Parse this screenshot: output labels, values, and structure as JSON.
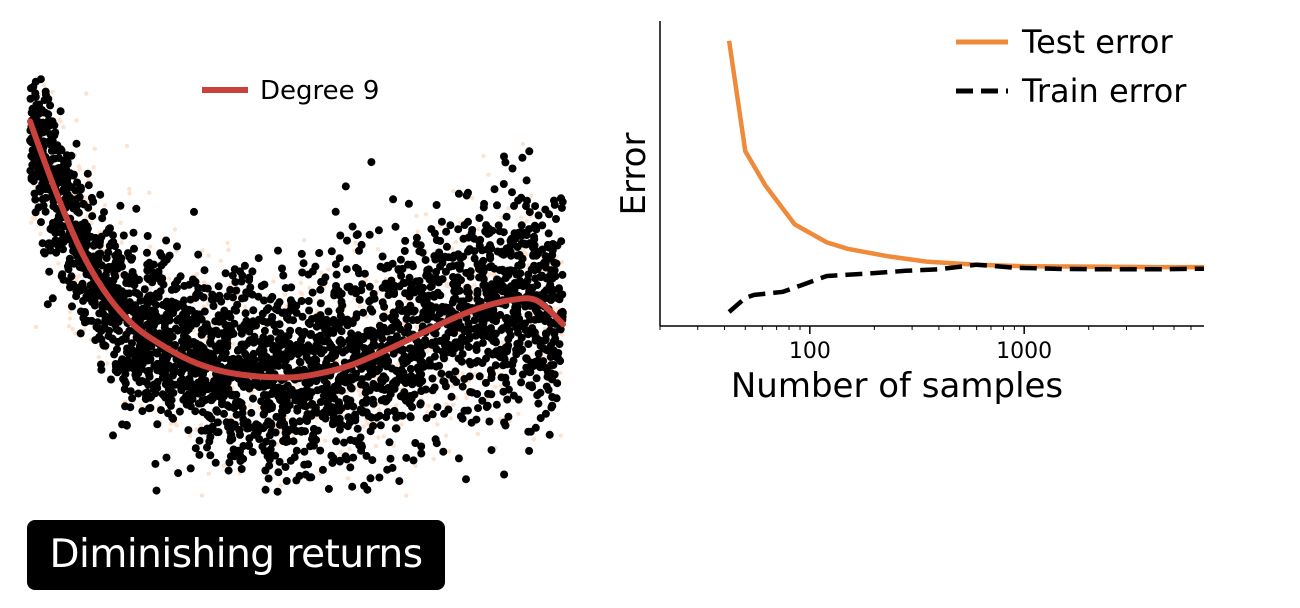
{
  "caption": "Diminishing returns",
  "colors": {
    "fit": "#c8413b",
    "test": "#ef8a3a",
    "train": "#000000",
    "points": "#000000",
    "faint_points": "#fde3cf",
    "axis": "#000000"
  },
  "chart_data": [
    {
      "type": "scatter",
      "title": "",
      "xlabel": "",
      "ylabel": "",
      "grid": false,
      "axes_visible": false,
      "xlim": [
        0,
        1
      ],
      "ylim": [
        -3.2,
        2.6
      ],
      "legend": {
        "placement": "top-center",
        "entries": [
          "Degree 9"
        ]
      },
      "scatter_description": "about 3000 noisy points scattered around a U-shaped trend; lighter orange points behind",
      "series": [
        {
          "name": "Degree 9",
          "style": "solid-line",
          "color": "#c8413b",
          "x": [
            0.0,
            0.05,
            0.1,
            0.15,
            0.2,
            0.25,
            0.3,
            0.35,
            0.4,
            0.45,
            0.5,
            0.55,
            0.6,
            0.65,
            0.7,
            0.75,
            0.8,
            0.85,
            0.9,
            0.95,
            1.0
          ],
          "y": [
            2.0,
            1.0,
            0.15,
            -0.45,
            -0.85,
            -1.1,
            -1.3,
            -1.43,
            -1.5,
            -1.53,
            -1.53,
            -1.47,
            -1.37,
            -1.22,
            -1.05,
            -0.87,
            -0.7,
            -0.56,
            -0.47,
            -0.47,
            -0.8
          ]
        }
      ]
    },
    {
      "type": "line",
      "title": "",
      "xlabel": "Number of samples",
      "ylabel": "Error",
      "xscale": "log",
      "xlim": [
        20,
        6900
      ],
      "xticks": [
        100,
        1000
      ],
      "xtick_labels": [
        "100",
        "1000"
      ],
      "ylim": [
        0,
        1
      ],
      "yticks": [],
      "grid": false,
      "legend": {
        "placement": "top-right",
        "entries": [
          "Test error",
          "Train error"
        ]
      },
      "series": [
        {
          "name": "Test error",
          "style": "solid",
          "color": "#ef8a3a",
          "x": [
            42,
            50,
            62,
            85,
            120,
            150,
            230,
            350,
            600,
            1000,
            1600,
            2500,
            4000,
            6900
          ],
          "y": [
            0.935,
            0.573,
            0.461,
            0.333,
            0.274,
            0.253,
            0.229,
            0.211,
            0.201,
            0.196,
            0.195,
            0.194,
            0.193,
            0.193
          ]
        },
        {
          "name": "Train error",
          "style": "dashed",
          "color": "#000000",
          "x": [
            42,
            50,
            55,
            75,
            90,
            120,
            180,
            280,
            400,
            600,
            900,
            1500,
            2500,
            4000,
            6900
          ],
          "y": [
            0.046,
            0.092,
            0.102,
            0.112,
            0.132,
            0.164,
            0.171,
            0.181,
            0.186,
            0.201,
            0.191,
            0.187,
            0.186,
            0.186,
            0.188
          ]
        }
      ]
    }
  ]
}
